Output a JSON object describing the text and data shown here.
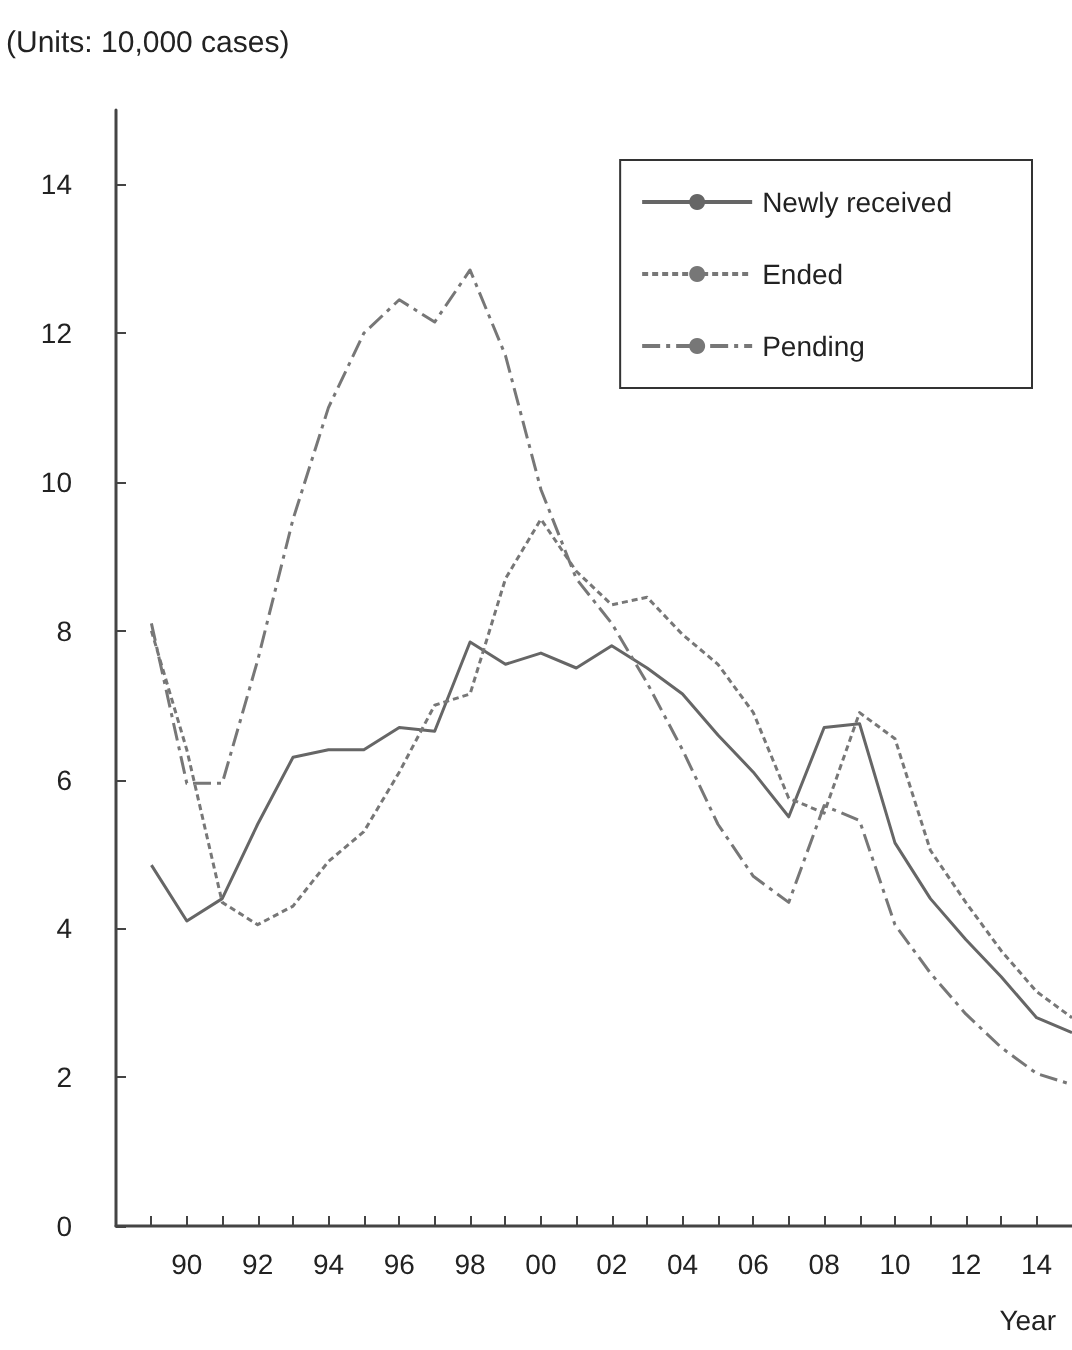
{
  "chart_data": {
    "type": "line",
    "ylabel": "(Units: 10,000 cases)",
    "xlabel": "Year",
    "x": [
      1989,
      1990,
      1991,
      1992,
      1993,
      1994,
      1995,
      1996,
      1997,
      1998,
      1999,
      2000,
      2001,
      2002,
      2003,
      2004,
      2005,
      2006,
      2007,
      2008,
      2009,
      2010,
      2011,
      2012,
      2013,
      2014,
      2015
    ],
    "series": [
      {
        "name": "Newly received",
        "color": "#666666",
        "line_style": "solid",
        "values": [
          4.85,
          4.1,
          4.4,
          5.4,
          6.3,
          6.4,
          6.4,
          6.7,
          6.65,
          7.85,
          7.55,
          7.7,
          7.5,
          7.8,
          7.5,
          7.15,
          6.6,
          6.1,
          5.5,
          6.7,
          6.75,
          5.15,
          4.4,
          3.85,
          3.35,
          2.8,
          2.6
        ]
      },
      {
        "name": "Ended",
        "color": "#777777",
        "line_style": "dotted",
        "values": [
          8.0,
          6.4,
          4.35,
          4.05,
          4.3,
          4.9,
          5.3,
          6.1,
          7.0,
          7.15,
          8.7,
          9.5,
          8.8,
          8.35,
          8.45,
          7.95,
          7.55,
          6.9,
          5.75,
          5.55,
          6.9,
          6.55,
          5.05,
          4.35,
          3.7,
          3.15,
          2.8
        ]
      },
      {
        "name": "Pending",
        "color": "#777777",
        "line_style": "dashdot",
        "values": [
          8.1,
          5.95,
          5.95,
          7.6,
          9.5,
          11.0,
          12.0,
          12.45,
          12.15,
          12.85,
          11.7,
          9.9,
          8.7,
          8.1,
          7.3,
          6.4,
          5.4,
          4.7,
          4.35,
          5.65,
          5.45,
          4.05,
          3.4,
          2.85,
          2.4,
          2.05,
          1.9
        ]
      }
    ],
    "xlim": [
      1988,
      2015
    ],
    "xticks": [
      {
        "value": 1989,
        "label": null
      },
      {
        "value": 1990,
        "label": "90"
      },
      {
        "value": 1991,
        "label": null
      },
      {
        "value": 1992,
        "label": "92"
      },
      {
        "value": 1993,
        "label": null
      },
      {
        "value": 1994,
        "label": "94"
      },
      {
        "value": 1995,
        "label": null
      },
      {
        "value": 1996,
        "label": "96"
      },
      {
        "value": 1997,
        "label": null
      },
      {
        "value": 1998,
        "label": "98"
      },
      {
        "value": 1999,
        "label": null
      },
      {
        "value": 2000,
        "label": "00"
      },
      {
        "value": 2001,
        "label": null
      },
      {
        "value": 2002,
        "label": "02"
      },
      {
        "value": 2003,
        "label": null
      },
      {
        "value": 2004,
        "label": "04"
      },
      {
        "value": 2005,
        "label": null
      },
      {
        "value": 2006,
        "label": "06"
      },
      {
        "value": 2007,
        "label": null
      },
      {
        "value": 2008,
        "label": "08"
      },
      {
        "value": 2009,
        "label": null
      },
      {
        "value": 2010,
        "label": "10"
      },
      {
        "value": 2011,
        "label": null
      },
      {
        "value": 2012,
        "label": "12"
      },
      {
        "value": 2013,
        "label": null
      },
      {
        "value": 2014,
        "label": "14"
      }
    ],
    "ylim": [
      0,
      15
    ],
    "yticks": [
      0,
      2,
      4,
      6,
      8,
      10,
      12,
      14
    ],
    "grid": false,
    "legend": "top right",
    "marker": "none"
  }
}
